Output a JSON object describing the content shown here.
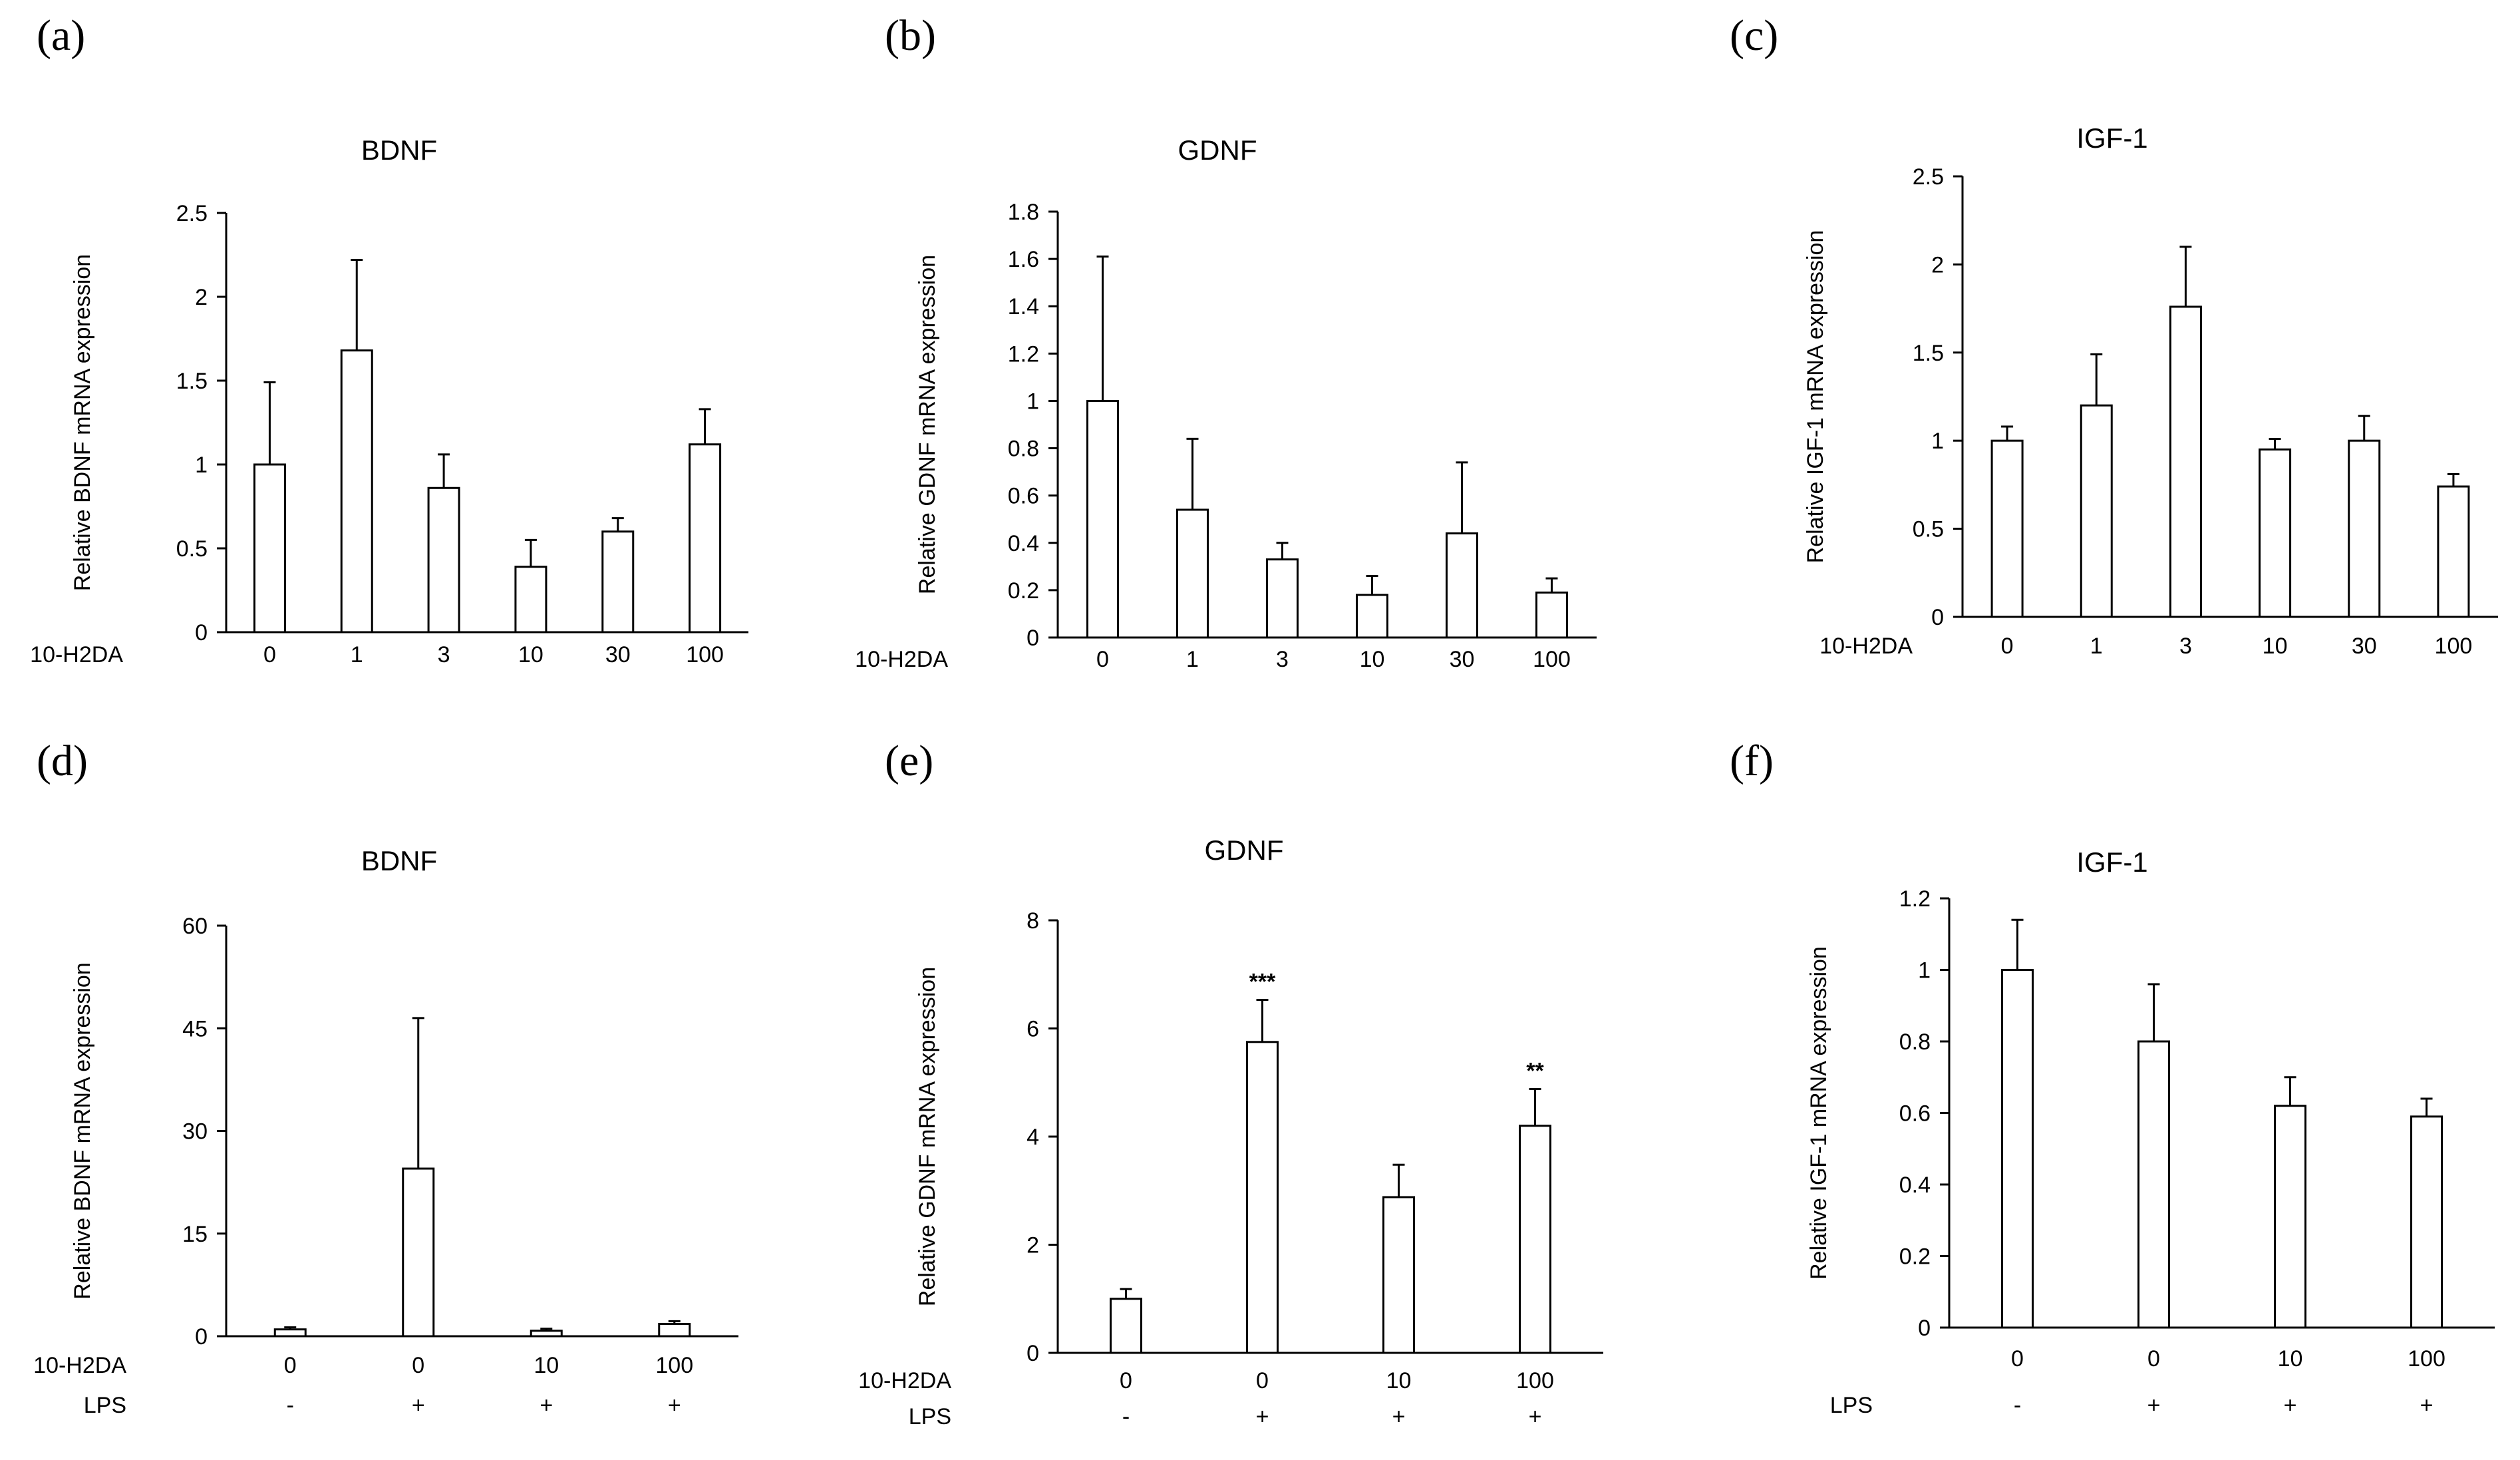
{
  "figure": {
    "panels": [
      {
        "label": "(a)",
        "chart_data": {
          "type": "bar",
          "title": "BDNF",
          "ylabel": "Relative BDNF mRNA expression",
          "ylim": [
            0,
            2.5
          ],
          "yticks": [
            "0",
            "0.5",
            "1",
            "1.5",
            "2",
            "2.5"
          ],
          "categories": [
            "0",
            "1",
            "3",
            "10",
            "30",
            "100"
          ],
          "values": [
            1.0,
            1.68,
            0.86,
            0.39,
            0.6,
            1.12
          ],
          "errors": [
            0.49,
            0.54,
            0.2,
            0.16,
            0.08,
            0.21
          ],
          "significance": [
            "",
            "",
            "",
            "",
            "",
            ""
          ],
          "row_labels": [
            "10-H2DA"
          ],
          "extra_rows": []
        }
      },
      {
        "label": "(b)",
        "chart_data": {
          "type": "bar",
          "title": "GDNF",
          "ylabel": "Relative GDNF mRNA expression",
          "ylim": [
            0,
            1.8
          ],
          "yticks": [
            "0",
            "0.2",
            "0.4",
            "0.6",
            "0.8",
            "1",
            "1.2",
            "1.4",
            "1.6",
            "1.8"
          ],
          "categories": [
            "0",
            "1",
            "3",
            "10",
            "30",
            "100"
          ],
          "values": [
            1.0,
            0.54,
            0.33,
            0.18,
            0.44,
            0.19
          ],
          "errors": [
            0.61,
            0.3,
            0.07,
            0.08,
            0.3,
            0.06
          ],
          "significance": [
            "",
            "",
            "",
            "",
            "",
            ""
          ],
          "row_labels": [
            "10-H2DA"
          ],
          "extra_rows": []
        }
      },
      {
        "label": "(c)",
        "chart_data": {
          "type": "bar",
          "title": "IGF-1",
          "ylabel": "Relative IGF-1 mRNA expression",
          "ylim": [
            0,
            2.5
          ],
          "yticks": [
            "0",
            "0.5",
            "1",
            "1.5",
            "2",
            "2.5"
          ],
          "categories": [
            "0",
            "1",
            "3",
            "10",
            "30",
            "100"
          ],
          "values": [
            1.0,
            1.2,
            1.76,
            0.95,
            1.0,
            0.74
          ],
          "errors": [
            0.08,
            0.29,
            0.34,
            0.06,
            0.14,
            0.07
          ],
          "significance": [
            "",
            "",
            "",
            "",
            "",
            ""
          ],
          "row_labels": [
            "10-H2DA"
          ],
          "extra_rows": []
        }
      },
      {
        "label": "(d)",
        "chart_data": {
          "type": "bar",
          "title": "BDNF",
          "ylabel": "Relative BDNF mRNA expression",
          "ylim": [
            0,
            60
          ],
          "yticks": [
            "0",
            "15",
            "30",
            "45",
            "60"
          ],
          "categories": [
            "0",
            "0",
            "10",
            "100"
          ],
          "values": [
            1.0,
            24.5,
            0.8,
            1.8
          ],
          "errors": [
            0.3,
            22.0,
            0.3,
            0.4
          ],
          "significance": [
            "",
            "",
            "",
            ""
          ],
          "row_labels": [
            "10-H2DA",
            "LPS"
          ],
          "extra_rows": [
            [
              "-",
              "+",
              "+",
              "+"
            ]
          ]
        }
      },
      {
        "label": "(e)",
        "chart_data": {
          "type": "bar",
          "title": "GDNF",
          "ylabel": "Relative GDNF mRNA expression",
          "ylim": [
            0,
            8
          ],
          "yticks": [
            "0",
            "2",
            "4",
            "6",
            "8"
          ],
          "categories": [
            "0",
            "0",
            "10",
            "100"
          ],
          "values": [
            1.0,
            5.75,
            2.88,
            4.2
          ],
          "errors": [
            0.18,
            0.78,
            0.6,
            0.68
          ],
          "significance": [
            "",
            "***",
            "",
            "**"
          ],
          "row_labels": [
            "10-H2DA",
            "LPS"
          ],
          "extra_rows": [
            [
              "-",
              "+",
              "+",
              "+"
            ]
          ]
        }
      },
      {
        "label": "(f)",
        "chart_data": {
          "type": "bar",
          "title": "IGF-1",
          "ylabel": "Relative IGF-1 mRNA expression",
          "ylim": [
            0,
            1.2
          ],
          "yticks": [
            "0",
            "0.2",
            "0.4",
            "0.6",
            "0.8",
            "1",
            "1.2"
          ],
          "categories": [
            "0",
            "0",
            "10",
            "100"
          ],
          "values": [
            1.0,
            0.8,
            0.62,
            0.59
          ],
          "errors": [
            0.14,
            0.16,
            0.08,
            0.05
          ],
          "significance": [
            "",
            "",
            "",
            ""
          ],
          "row_labels": [
            "LPS"
          ],
          "extra_rows": [
            [
              "-",
              "+",
              "+",
              "+"
            ]
          ]
        }
      }
    ]
  }
}
